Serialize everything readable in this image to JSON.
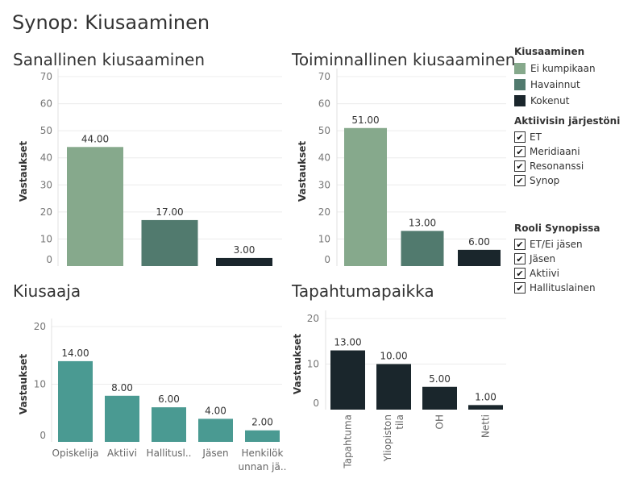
{
  "page_title": "Synop: Kiusaaminen",
  "legend": {
    "title": "Kiusaaminen",
    "items": [
      {
        "label": "Ei kumpikaan",
        "color": "#86a98c"
      },
      {
        "label": "Havainnut",
        "color": "#517a6e"
      },
      {
        "label": "Kokenut",
        "color": "#1a262c"
      }
    ]
  },
  "filters": [
    {
      "title": "Aktiivisin järjestöni",
      "options": [
        {
          "label": "ET",
          "checked": true
        },
        {
          "label": "Meridiaani",
          "checked": true
        },
        {
          "label": "Resonanssi",
          "checked": true
        },
        {
          "label": "Synop",
          "checked": true
        }
      ]
    },
    {
      "title": "Rooli Synopissa",
      "options": [
        {
          "label": "ET/Ei jäsen",
          "checked": true
        },
        {
          "label": "Jäsen",
          "checked": true
        },
        {
          "label": "Aktiivi",
          "checked": true
        },
        {
          "label": "Hallituslainen",
          "checked": true
        }
      ]
    }
  ],
  "chart_data": [
    {
      "type": "bar",
      "title": "Sanallinen kiusaaminen",
      "ylabel": "Vastaukset",
      "ylim": [
        0,
        70
      ],
      "yticks": [
        "0",
        "10",
        "20",
        "30",
        "40",
        "50",
        "60",
        "70"
      ],
      "categories": [
        "Ei kumpikaan",
        "Havainnut",
        "Kokenut"
      ],
      "values": [
        44,
        17,
        3
      ],
      "value_labels": [
        "44.00",
        "17.00",
        "3.00"
      ],
      "colors": [
        "#86a98c",
        "#517a6e",
        "#1a262c"
      ]
    },
    {
      "type": "bar",
      "title": "Toiminnallinen kiusaaminen",
      "ylabel": "Vastaukset",
      "ylim": [
        0,
        70
      ],
      "yticks": [
        "0",
        "10",
        "20",
        "30",
        "40",
        "50",
        "60",
        "70"
      ],
      "categories": [
        "Ei kumpikaan",
        "Havainnut",
        "Kokenut"
      ],
      "values": [
        51,
        13,
        6
      ],
      "value_labels": [
        "51.00",
        "13.00",
        "6.00"
      ],
      "colors": [
        "#86a98c",
        "#517a6e",
        "#1a262c"
      ]
    },
    {
      "type": "bar",
      "title": "Kiusaaja",
      "ylabel": "Vastaukset",
      "ylim": [
        0,
        20
      ],
      "yticks": [
        "0",
        "10",
        "20"
      ],
      "categories": [
        "Opiskelija",
        "Aktiivi",
        "Hallitusl..",
        "Jäsen",
        "Henkilök\nunnan jä.."
      ],
      "values": [
        14,
        8,
        6,
        4,
        2
      ],
      "value_labels": [
        "14.00",
        "8.00",
        "6.00",
        "4.00",
        "2.00"
      ],
      "colors": [
        "#4a9a92",
        "#4a9a92",
        "#4a9a92",
        "#4a9a92",
        "#4a9a92"
      ]
    },
    {
      "type": "bar",
      "title": "Tapahtumapaikka",
      "ylabel": "Vastaukset",
      "ylim": [
        0,
        20
      ],
      "yticks": [
        "0",
        "10",
        "20"
      ],
      "categories": [
        "Tapahtuma",
        "Yliopiston\ntila",
        "OH",
        "Netti"
      ],
      "values": [
        13,
        10,
        5,
        1
      ],
      "value_labels": [
        "13.00",
        "10.00",
        "5.00",
        "1.00"
      ],
      "colors": [
        "#1a262c",
        "#1a262c",
        "#1a262c",
        "#1a262c"
      ]
    }
  ]
}
